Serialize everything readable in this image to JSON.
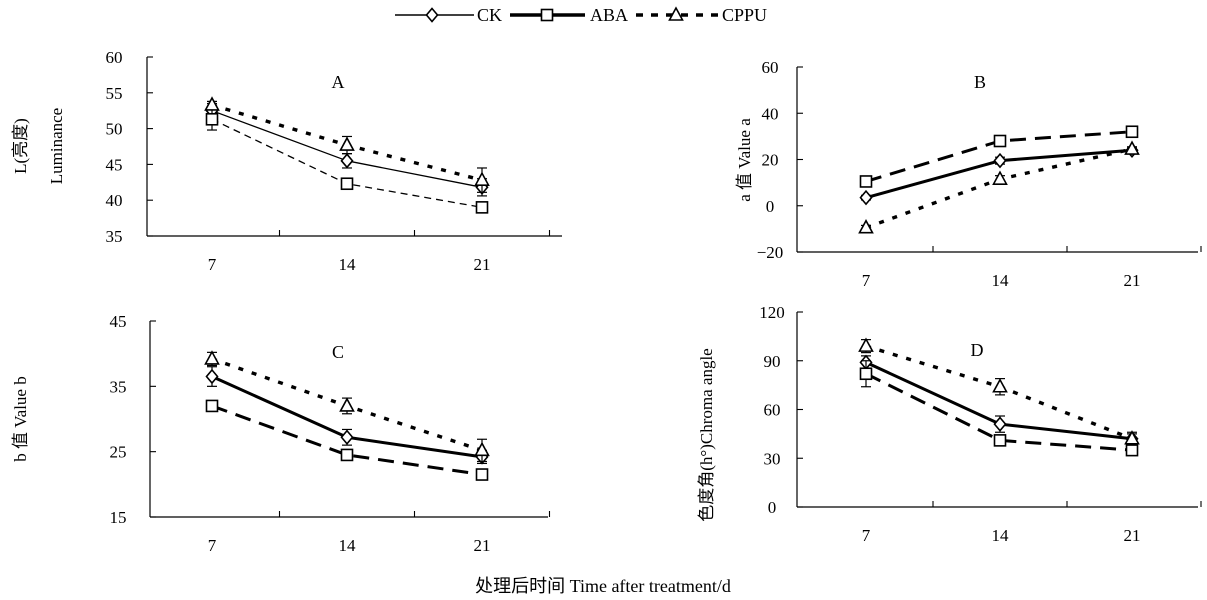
{
  "legend": [
    {
      "name": "CK",
      "marker": "diamond",
      "line": "solid"
    },
    {
      "name": "ABA",
      "marker": "square",
      "line": "dash"
    },
    {
      "name": "CPPU",
      "marker": "triangle",
      "line": "dot"
    }
  ],
  "bottom_title": "处理后时间 Time after treatment/d",
  "chart_data": [
    {
      "type": "line",
      "panel": "A",
      "title": "A",
      "ylabel": "L(亮度) Luminance",
      "ylabel_lines": [
        "L(亮度)",
        "Luminance"
      ],
      "xlabel": "",
      "categories": [
        "7",
        "14",
        "21"
      ],
      "ylim": [
        35,
        60
      ],
      "yticks": [
        35,
        40,
        45,
        50,
        55,
        60
      ],
      "series": [
        {
          "name": "CK",
          "values": [
            52.5,
            45.5,
            41.8
          ],
          "errors": [
            1.0,
            1.0,
            1.2
          ],
          "line": "thin-solid"
        },
        {
          "name": "ABA",
          "values": [
            51.3,
            42.3,
            39.0
          ],
          "errors": [
            1.5,
            0.5,
            0.7
          ],
          "line": "thin-dash"
        },
        {
          "name": "CPPU",
          "values": [
            53.3,
            47.7,
            42.8
          ],
          "errors": [
            0.5,
            1.2,
            1.7
          ],
          "line": "dot"
        }
      ]
    },
    {
      "type": "line",
      "panel": "B",
      "title": "B",
      "ylabel": "a 值 Value a",
      "ylabel_lines": [
        "a 值 Value a"
      ],
      "xlabel": "",
      "categories": [
        "7",
        "14",
        "21"
      ],
      "ylim": [
        -20,
        60
      ],
      "yticks": [
        -20,
        0,
        20,
        40,
        60
      ],
      "series": [
        {
          "name": "CK",
          "values": [
            3.5,
            19.5,
            24.0
          ],
          "errors": [
            1.0,
            1.5,
            1.0
          ],
          "line": "solid"
        },
        {
          "name": "ABA",
          "values": [
            10.5,
            28.0,
            32.0
          ],
          "errors": [
            1.0,
            1.5,
            1.5
          ],
          "line": "dash"
        },
        {
          "name": "CPPU",
          "values": [
            -9.5,
            11.5,
            24.5
          ],
          "errors": [
            1.0,
            1.5,
            1.0
          ],
          "line": "dot"
        }
      ]
    },
    {
      "type": "line",
      "panel": "C",
      "title": "C",
      "ylabel": "b 值 Value b",
      "ylabel_lines": [
        "b 值 Value b"
      ],
      "xlabel": "",
      "categories": [
        "7",
        "14",
        "21"
      ],
      "ylim": [
        15,
        45
      ],
      "yticks": [
        15,
        25,
        35,
        45
      ],
      "series": [
        {
          "name": "CK",
          "values": [
            36.5,
            27.2,
            24.2
          ],
          "errors": [
            1.5,
            1.2,
            1.0
          ],
          "line": "solid"
        },
        {
          "name": "ABA",
          "values": [
            32.0,
            24.5,
            21.5
          ],
          "errors": [
            0.5,
            0.5,
            0.5
          ],
          "line": "dash"
        },
        {
          "name": "CPPU",
          "values": [
            39.2,
            32.0,
            25.2
          ],
          "errors": [
            1.0,
            1.2,
            1.7
          ],
          "line": "dot"
        }
      ]
    },
    {
      "type": "line",
      "panel": "D",
      "title": "D",
      "ylabel": "色度角(h°)Chroma angle",
      "ylabel_lines": [
        "色度角(h°)Chroma angle"
      ],
      "xlabel": "",
      "categories": [
        "7",
        "14",
        "21"
      ],
      "ylim": [
        0,
        120
      ],
      "yticks": [
        0,
        30,
        60,
        90,
        120
      ],
      "series": [
        {
          "name": "CK",
          "values": [
            89,
            51,
            42
          ],
          "errors": [
            4,
            5,
            3
          ],
          "line": "solid"
        },
        {
          "name": "ABA",
          "values": [
            82,
            41,
            35
          ],
          "errors": [
            8,
            3,
            3
          ],
          "line": "dash"
        },
        {
          "name": "CPPU",
          "values": [
            99,
            74,
            42
          ],
          "errors": [
            4,
            5,
            4
          ],
          "line": "dot"
        }
      ]
    }
  ]
}
